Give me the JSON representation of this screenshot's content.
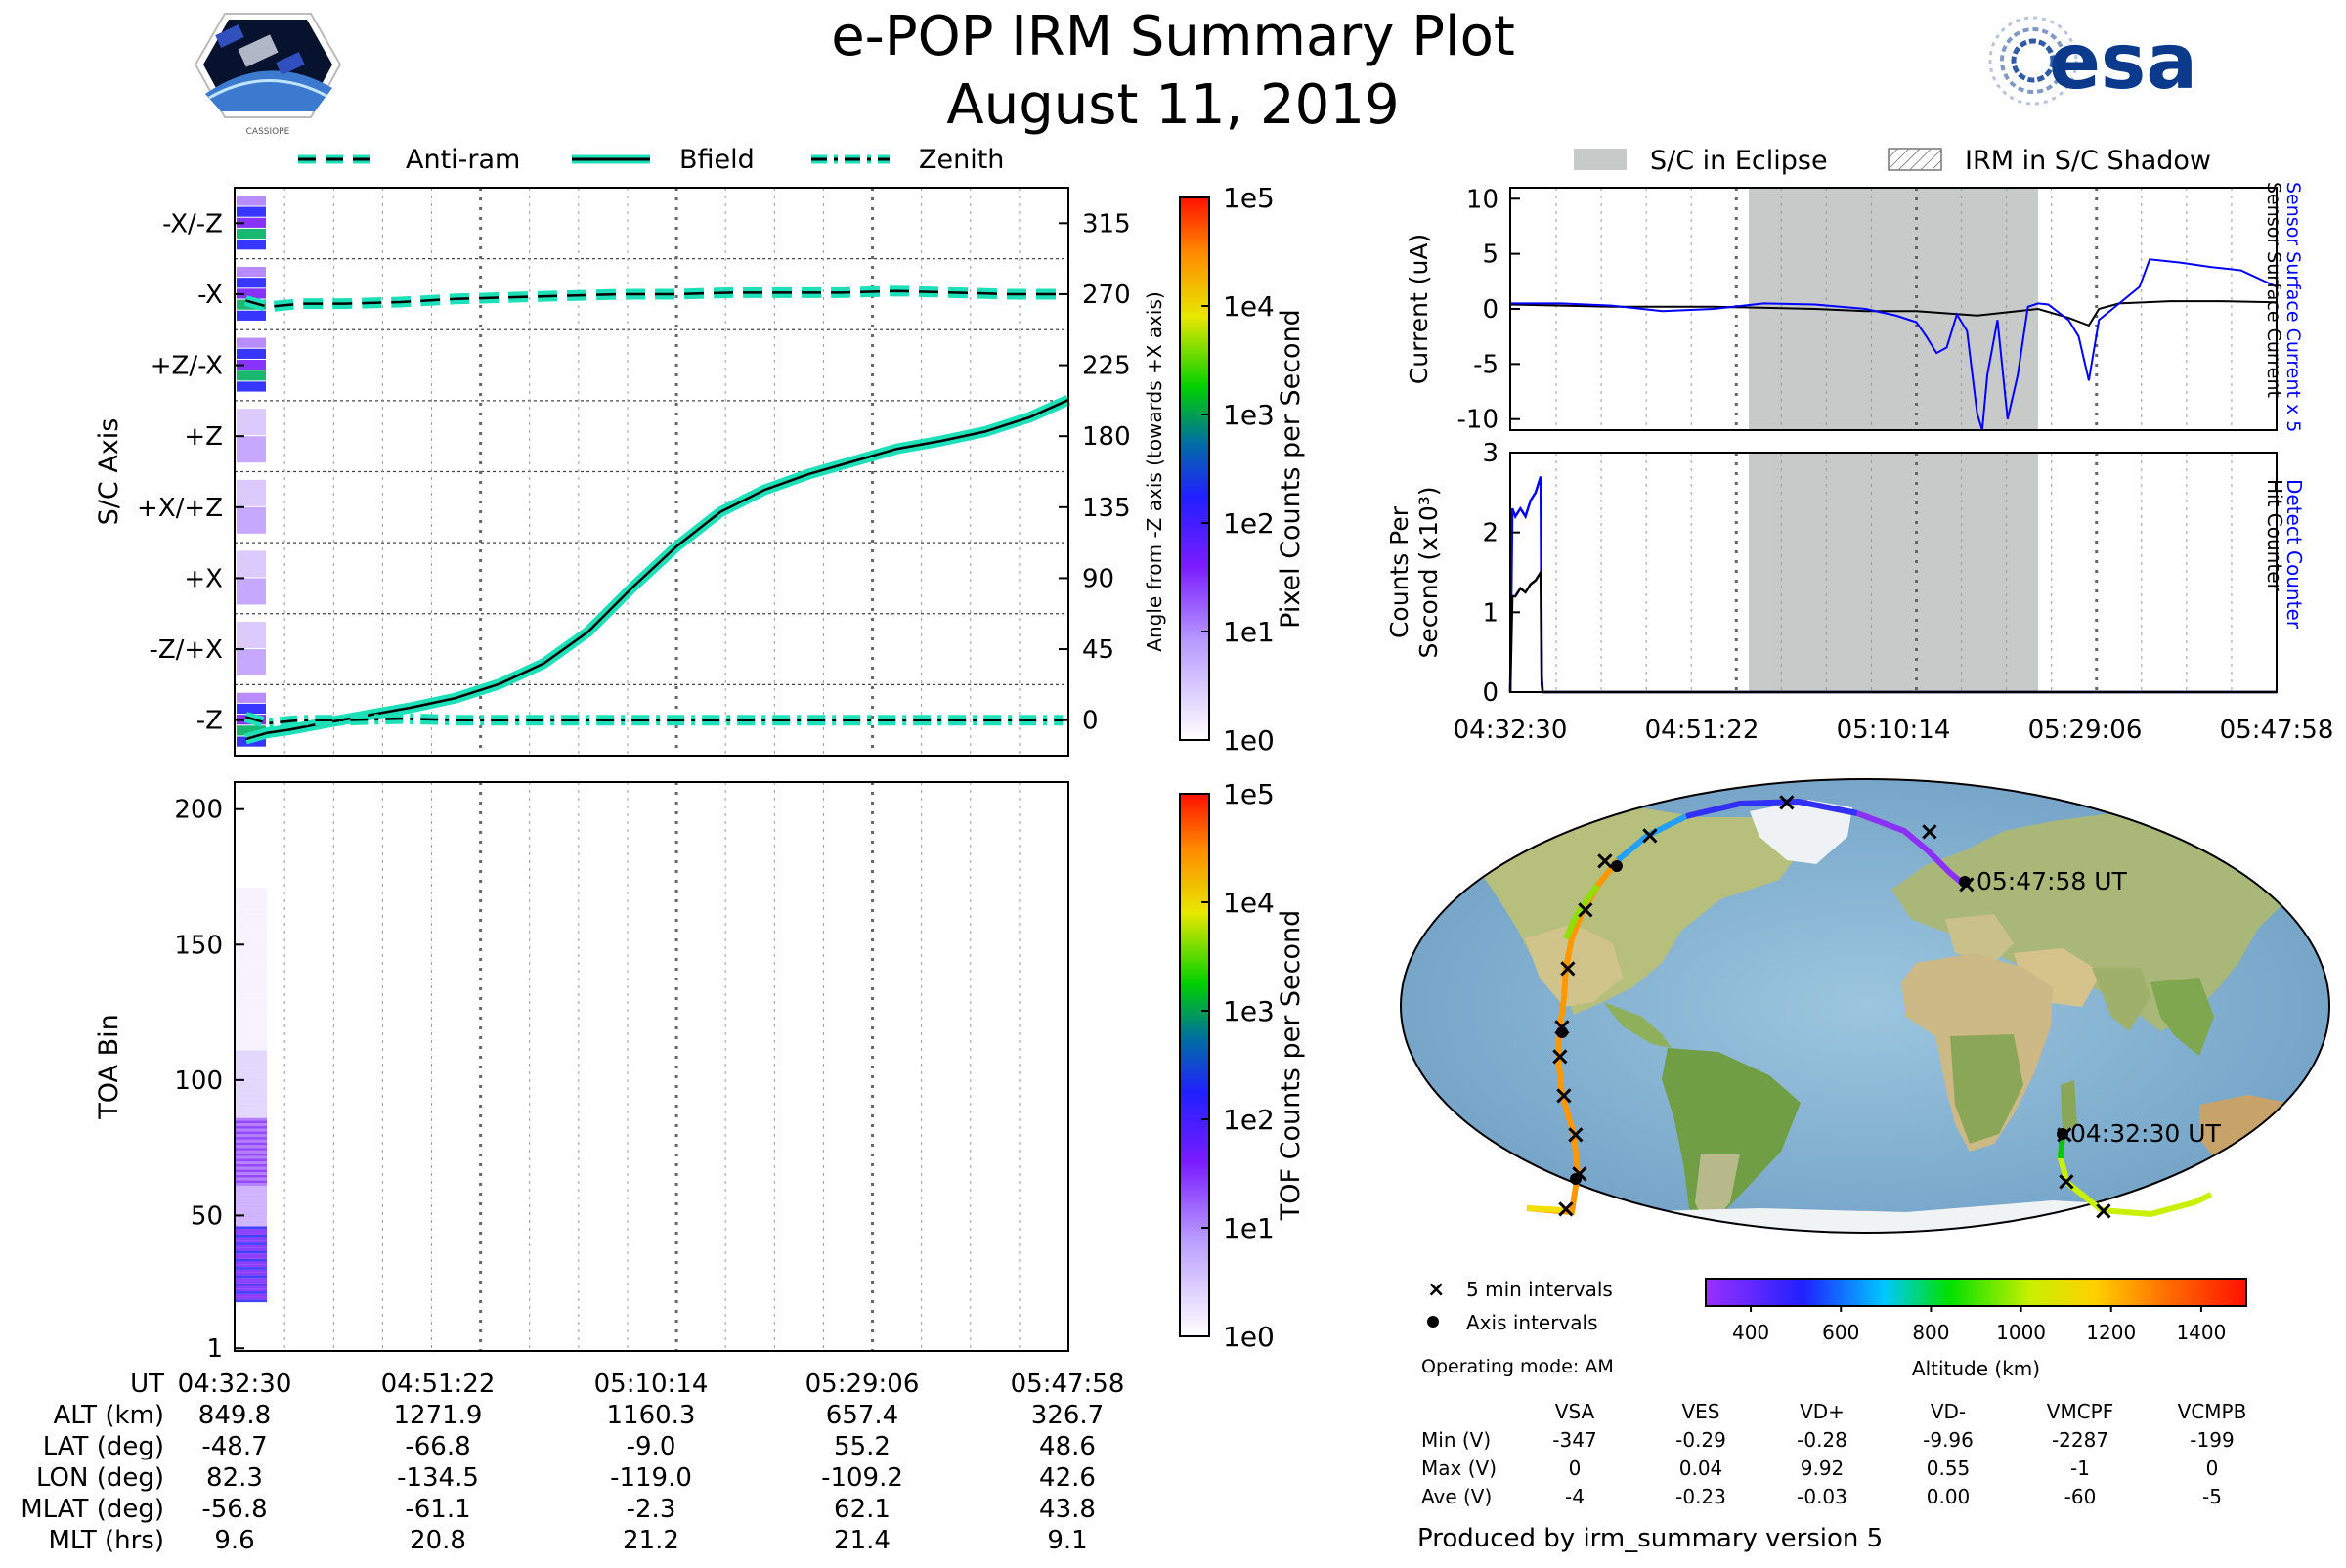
{
  "header": {
    "title": "e-POP IRM Summary Plot",
    "date": "August 11, 2019",
    "mission_logo_text": "CASSIOPE",
    "agency_logo_text": "esa"
  },
  "colors": {
    "cyan": "#1de0b8",
    "eclipse": "#c8caca",
    "sensor_blue": "#0000ff",
    "grid": "#888888"
  },
  "legend_top_left": [
    {
      "name": "Anti-ram",
      "style": "dashed"
    },
    {
      "name": "Bfield",
      "style": "solid"
    },
    {
      "name": "Zenith",
      "style": "dashdot"
    }
  ],
  "legend_top_right": [
    {
      "name": "S/C in Eclipse",
      "style": "filled"
    },
    {
      "name": "IRM in S/C Shadow",
      "style": "hatched"
    }
  ],
  "time_ticks": [
    "04:32:30",
    "04:51:22",
    "05:10:14",
    "05:29:06",
    "05:47:58"
  ],
  "chart_data": [
    {
      "id": "sc_axis",
      "type": "line",
      "ylabel": "S/C Axis",
      "ylabel_right": "Angle from -Z axis (towards +X axis)",
      "y_categories": [
        "-Z",
        "-Z/+X",
        "+X",
        "+X/+Z",
        "+Z",
        "+Z/-X",
        "-X",
        "-X/-Z"
      ],
      "y_angle_ticks": [
        0,
        45,
        90,
        135,
        180,
        225,
        270,
        315
      ],
      "ylim": [
        -22.5,
        337.5
      ],
      "xlim": [
        0,
        75.5
      ],
      "series": [
        {
          "name": "Anti-ram",
          "x": [
            1,
            3,
            6,
            10,
            15,
            20,
            25,
            30,
            35,
            40,
            45,
            50,
            55,
            60,
            65,
            70,
            75
          ],
          "values": [
            266,
            262,
            264,
            264,
            265,
            267,
            268,
            269,
            270,
            270,
            271,
            271,
            271,
            272,
            271,
            270,
            270
          ]
        },
        {
          "name": "Bfield",
          "x": [
            1,
            3,
            5,
            8,
            12,
            16,
            20,
            24,
            28,
            32,
            36,
            40,
            44,
            48,
            52,
            56,
            60,
            64,
            68,
            72,
            75.5
          ],
          "values": [
            -12,
            -8,
            -6,
            -2,
            3,
            8,
            14,
            23,
            36,
            56,
            84,
            110,
            132,
            146,
            156,
            164,
            172,
            177,
            183,
            192,
            203
          ]
        },
        {
          "name": "Zenith",
          "x": [
            1,
            3,
            6,
            10,
            15,
            20,
            25,
            30,
            35,
            40,
            45,
            50,
            55,
            60,
            65,
            70,
            75
          ],
          "values": [
            2,
            -2,
            0,
            0,
            1,
            0,
            0,
            0,
            0,
            0,
            0,
            0,
            0,
            0,
            0,
            0,
            0
          ]
        }
      ],
      "colorbar": {
        "label": "Pixel Counts per Second",
        "ticks": [
          "1e0",
          "1e1",
          "1e2",
          "1e3",
          "1e4",
          "1e5"
        ]
      }
    },
    {
      "id": "toa",
      "type": "heatmap",
      "ylabel": "TOA Bin",
      "y_ticks": [
        1,
        50,
        100,
        150,
        200
      ],
      "ylim": [
        0,
        210
      ],
      "colorbar": {
        "label": "TOF Counts per Second",
        "ticks": [
          "1e0",
          "1e1",
          "1e2",
          "1e3",
          "1e4",
          "1e5"
        ]
      }
    },
    {
      "id": "current",
      "type": "line",
      "ylabel": "Current (uA)",
      "ylabel_right_1": "Sensor Surface Current x 5",
      "ylabel_right_2": "Sensor Surface Current",
      "y_ticks": [
        -10,
        -5,
        0,
        5,
        10
      ],
      "ylim": [
        -11,
        11
      ],
      "xlim": [
        0,
        75.5
      ],
      "eclipse": [
        23.5,
        52
      ],
      "series": [
        {
          "name": "Sensor Surface Current",
          "color": "#000000",
          "x": [
            0,
            10,
            20,
            30,
            35,
            40,
            43,
            46,
            48,
            50,
            52,
            55,
            57,
            58,
            60,
            65,
            70,
            75.5
          ],
          "values": [
            0.4,
            0.2,
            0.2,
            0,
            -0.2,
            -0.2,
            -0.4,
            -0.6,
            -0.4,
            -0.2,
            0,
            -0.8,
            -1.5,
            0,
            0.5,
            0.7,
            0.7,
            0.6
          ]
        },
        {
          "name": "Sensor Surface Current x 5",
          "color": "#0000ff",
          "x": [
            0,
            5,
            10,
            15,
            20,
            25,
            30,
            35,
            38,
            40,
            41,
            42,
            43,
            44,
            45,
            46,
            46.5,
            47,
            48,
            49,
            50,
            51,
            52,
            53,
            55,
            56,
            57,
            58,
            60,
            62,
            63,
            66,
            69,
            72,
            75.5
          ],
          "values": [
            0.5,
            0.5,
            0.3,
            -0.2,
            0,
            0.5,
            0.4,
            0,
            -0.6,
            -1.2,
            -2.5,
            -4,
            -3.5,
            -0.5,
            -2,
            -9.5,
            -11,
            -6,
            -1,
            -10,
            -6,
            0.2,
            0.5,
            0.4,
            -1,
            -2.5,
            -6.5,
            -1,
            0.5,
            2,
            4.5,
            4.2,
            3.8,
            3.5,
            2
          ]
        }
      ]
    },
    {
      "id": "counts",
      "type": "line",
      "ylabel_1": "Counts Per",
      "ylabel_2": "Second (x10³)",
      "ylabel_right_1": "Detect Counter",
      "ylabel_right_2": "Hit Counter",
      "y_ticks": [
        0,
        1,
        2,
        3
      ],
      "ylim": [
        0,
        3
      ],
      "xlim": [
        0,
        75.5
      ],
      "eclipse": [
        23.5,
        52
      ],
      "series": [
        {
          "name": "Detect Counter",
          "color": "#0000ff",
          "x": [
            0,
            0.2,
            0.5,
            1,
            1.5,
            2,
            2.5,
            3,
            3.1,
            3.2,
            75.5
          ],
          "values": [
            0,
            2.3,
            2.2,
            2.3,
            2.2,
            2.4,
            2.5,
            2.7,
            0.2,
            0,
            0
          ]
        },
        {
          "name": "Hit Counter",
          "color": "#000000",
          "x": [
            0,
            0.2,
            0.5,
            1,
            1.5,
            2,
            2.5,
            3,
            3.1,
            3.2,
            75.5
          ],
          "values": [
            0,
            1.2,
            1.2,
            1.3,
            1.25,
            1.35,
            1.4,
            1.5,
            0.1,
            0,
            0
          ]
        }
      ]
    },
    {
      "id": "altitude_colorbar",
      "type": "colorbar",
      "xlabel": "Altitude (km)",
      "x_ticks": [
        400,
        600,
        800,
        1000,
        1200,
        1400
      ],
      "xlim": [
        300,
        1500
      ]
    }
  ],
  "map": {
    "start_label": "04:32:30 UT",
    "end_label": "05:47:58 UT"
  },
  "map_legend": {
    "cross": "5 min intervals",
    "dot": "Axis intervals",
    "operating_mode": "Operating mode: AM"
  },
  "ephemeris": {
    "rows": [
      {
        "label": "UT",
        "values": [
          "04:32:30",
          "04:51:22",
          "05:10:14",
          "05:29:06",
          "05:47:58"
        ]
      },
      {
        "label": "ALT (km)",
        "values": [
          "849.8",
          "1271.9",
          "1160.3",
          "657.4",
          "326.7"
        ]
      },
      {
        "label": "LAT (deg)",
        "values": [
          "-48.7",
          "-66.8",
          "-9.0",
          "55.2",
          "48.6"
        ]
      },
      {
        "label": "LON (deg)",
        "values": [
          "82.3",
          "-134.5",
          "-119.0",
          "-109.2",
          "42.6"
        ]
      },
      {
        "label": "MLAT (deg)",
        "values": [
          "-56.8",
          "-61.1",
          "-2.3",
          "62.1",
          "43.8"
        ]
      },
      {
        "label": "MLT (hrs)",
        "values": [
          "9.6",
          "20.8",
          "21.2",
          "21.4",
          "9.1"
        ]
      }
    ]
  },
  "voltages": {
    "columns": [
      "VSA",
      "VES",
      "VD+",
      "VD-",
      "VMCPF",
      "VCMPB"
    ],
    "rows": [
      {
        "label": "Min (V)",
        "values": [
          "-347",
          "-0.29",
          "-0.28",
          "-9.96",
          "-2287",
          "-199"
        ]
      },
      {
        "label": "Max (V)",
        "values": [
          "0",
          "0.04",
          "9.92",
          "0.55",
          "-1",
          "0"
        ]
      },
      {
        "label": "Ave (V)",
        "values": [
          "-4",
          "-0.23",
          "-0.03",
          "0.00",
          "-60",
          "-5"
        ]
      }
    ]
  },
  "footer": "Produced by irm_summary version 5"
}
